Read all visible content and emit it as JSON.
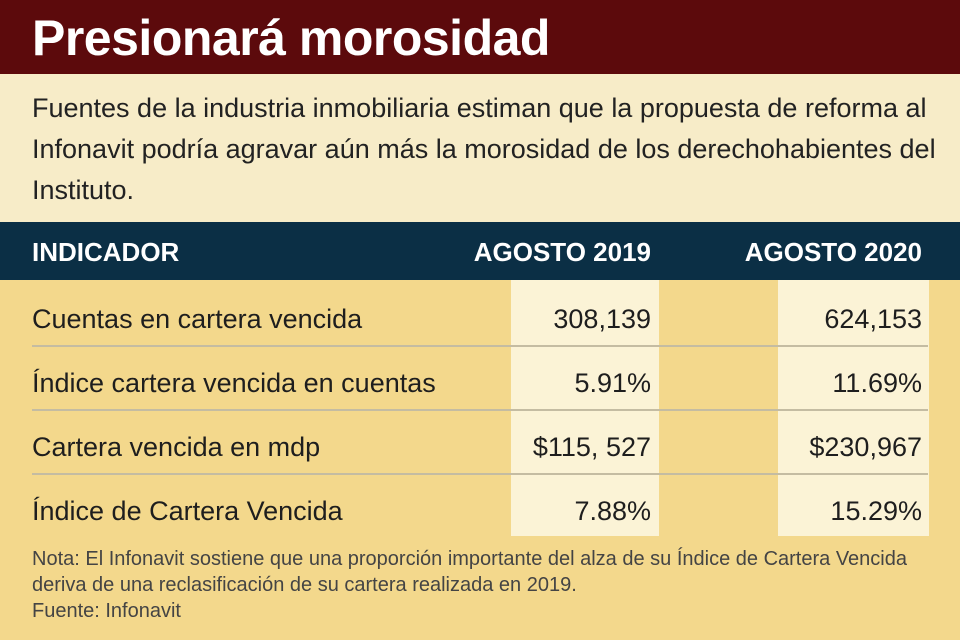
{
  "title": "Presionará morosidad",
  "intro": "Fuentes de la industria inmobiliaria estiman que la propuesta de reforma al Infonavit podría agravar aún más la morosidad de los derechohabientes del Instituto.",
  "table": {
    "headers": [
      "INDICADOR",
      "AGOSTO 2019",
      "AGOSTO 2020"
    ],
    "rows": [
      {
        "label": "Cuentas en cartera vencida",
        "v2019": "308,139",
        "v2020": "624,153"
      },
      {
        "label": "Índice cartera vencida en cuentas",
        "v2019": "5.91%",
        "v2020": "11.69%"
      },
      {
        "label": "Cartera vencida en mdp",
        "v2019": "$115, 527",
        "v2020": "$230,967"
      },
      {
        "label": "Índice de Cartera Vencida",
        "v2019": "7.88%",
        "v2020": "15.29%"
      }
    ]
  },
  "note": "Nota: El Infonavit sostiene que una proporción importante del alza de su Índice de Cartera Vencida deriva de una reclasificación de su cartera realizada en 2019.",
  "source": "Fuente: Infonavit",
  "colors": {
    "title_bg": "#5c0a0c",
    "intro_bg": "#f7ecc8",
    "header_bg": "#0b2f45",
    "body_bg": "#f3d88c",
    "value_col_bg": "#fbf3d6"
  }
}
